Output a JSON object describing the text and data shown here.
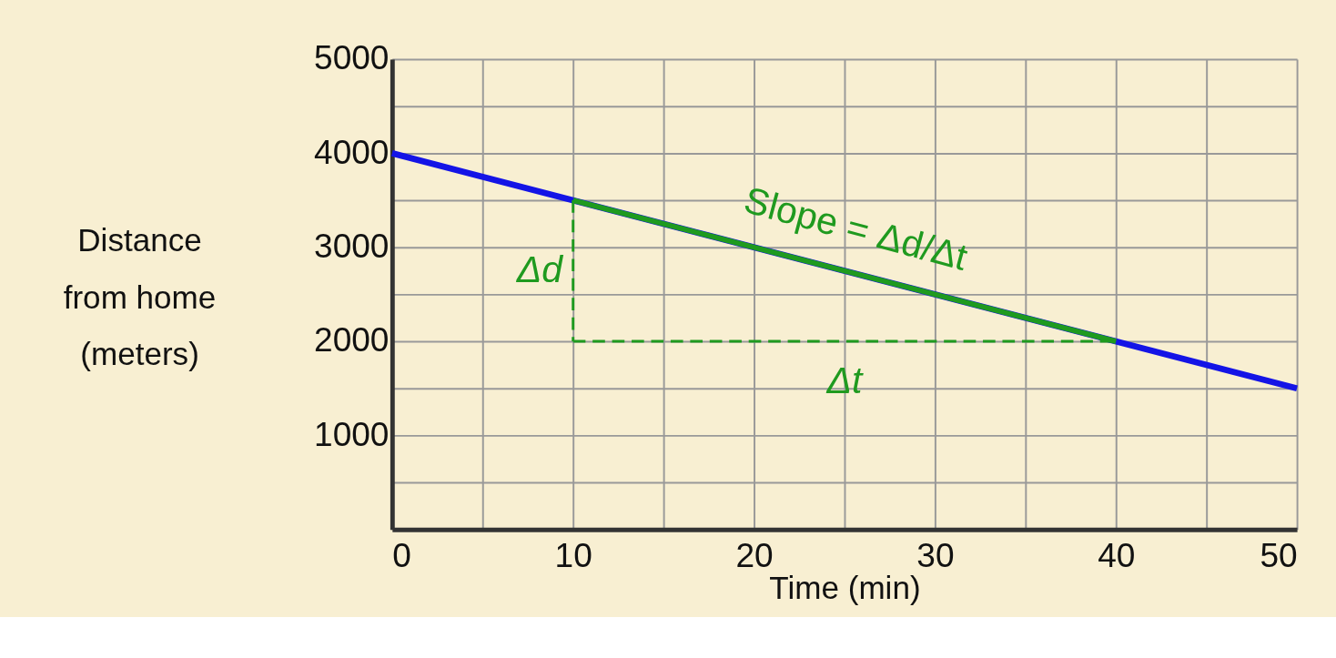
{
  "chart_data": {
    "type": "line",
    "xlabel": "Time (min)",
    "ylabel": "Distance from home (meters)",
    "xlim": [
      0,
      50
    ],
    "ylim": [
      0,
      5000
    ],
    "xticks": [
      0,
      {
        "value": 5,
        "label": null
      },
      10,
      {
        "value": 15,
        "label": null
      },
      20,
      {
        "value": 25,
        "label": null
      },
      30,
      {
        "value": 35,
        "label": null
      },
      40,
      {
        "value": 45,
        "label": null
      },
      50
    ],
    "yticks": [
      {
        "value": 500,
        "label": null
      },
      1000,
      {
        "value": 1500,
        "label": null
      },
      2000,
      {
        "value": 2500,
        "label": null
      },
      3000,
      {
        "value": 3500,
        "label": null
      },
      4000,
      {
        "value": 4500,
        "label": null
      },
      5000
    ],
    "grid": true,
    "marker": "none",
    "series": [
      {
        "color": "#1414e6",
        "x": [
          0,
          50
        ],
        "values": [
          4000,
          1500
        ],
        "line_style": "solid"
      },
      {
        "color": "#1f9a1f",
        "x": [
          10,
          40
        ],
        "values": [
          3500,
          2000
        ],
        "line_style": "solid"
      },
      {
        "color": "#1f9a1f",
        "x": [
          10,
          10
        ],
        "values": [
          3500,
          2000
        ],
        "line_style": "dashed"
      },
      {
        "color": "#1f9a1f",
        "x": [
          10,
          40
        ],
        "values": [
          2000,
          2000
        ],
        "line_style": "dashed"
      }
    ],
    "annotations": [
      "Slope = Δd/Δt",
      "Δd",
      "Δt"
    ]
  }
}
